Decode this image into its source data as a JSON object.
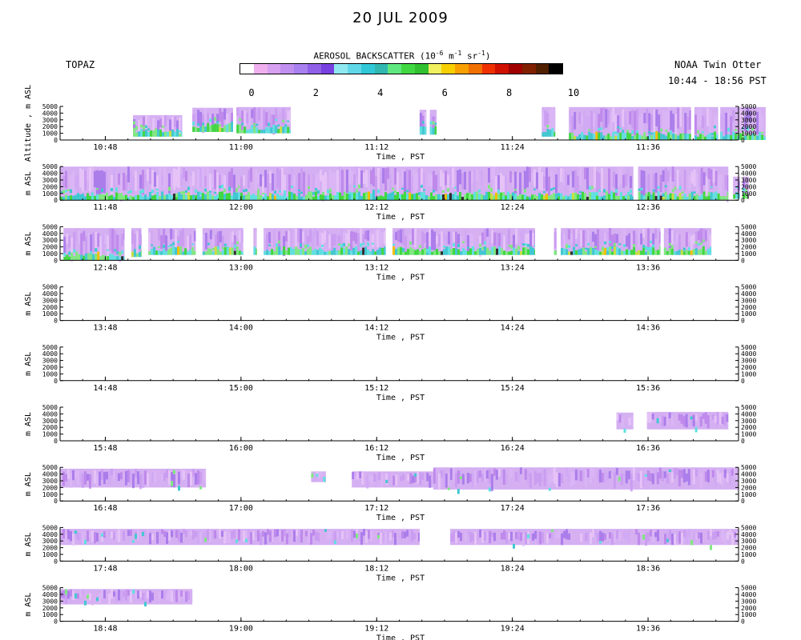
{
  "header": {
    "title": "20 JUL 2009",
    "instrument": "TOPAZ",
    "platform": "NOAA Twin Otter",
    "time_range": "10:44 - 18:56 PST"
  },
  "colorbar": {
    "label_pre": "AEROSOL BACKSCATTER (10",
    "label_exp1": "-6",
    "label_mid": " m",
    "label_exp2": "-1",
    "label_mid2": " sr",
    "label_exp3": "-1",
    "label_post": ")",
    "ticks": [
      "0",
      "2",
      "4",
      "6",
      "8",
      "10"
    ],
    "colors": [
      "#ffffff",
      "#f0b0f0",
      "#d8a0f0",
      "#c090f0",
      "#a880f0",
      "#9060e8",
      "#7840e0",
      "#90e8f0",
      "#60d8e8",
      "#30c8d8",
      "#30b8b0",
      "#60e880",
      "#40d840",
      "#30c030",
      "#f0f060",
      "#f8d000",
      "#f8a000",
      "#f07000",
      "#f03000",
      "#d01000",
      "#a00000",
      "#802000",
      "#502000",
      "#000000"
    ]
  },
  "chart_data": {
    "type": "heatmap",
    "quantity": "AEROSOL BACKSCATTER",
    "scale_range": [
      0,
      10
    ],
    "ylabel": "Altitude , m ASL",
    "ylabel_short": "m ASL",
    "xlabel": "Time , PST",
    "y_ticks": [
      "0",
      "1000",
      "2000",
      "3000",
      "4000",
      "5000"
    ],
    "ylim": [
      0,
      5000
    ],
    "panels": [
      {
        "start": "10:44",
        "end": "11:44",
        "ticks": [
          "10:48",
          "11:00",
          "11:12",
          "11:24",
          "11:36"
        ],
        "segments": [
          [
            10.75,
            18.0,
            500,
            3700,
            "full"
          ],
          [
            19.5,
            25.5,
            1200,
            4800,
            "full"
          ],
          [
            26.0,
            34.0,
            1000,
            4900,
            "full"
          ],
          [
            53.0,
            54.0,
            800,
            4500,
            "full"
          ],
          [
            54.5,
            55.5,
            800,
            4500,
            "full"
          ],
          [
            71.0,
            73.0,
            500,
            4900,
            "full"
          ],
          [
            75.0,
            93.0,
            0,
            4900,
            "full"
          ],
          [
            93.5,
            97.0,
            0,
            4900,
            "full"
          ],
          [
            97.3,
            104.0,
            0,
            4900,
            "full"
          ]
        ]
      },
      {
        "start": "11:44",
        "end": "12:44",
        "ticks": [
          "11:48",
          "12:00",
          "12:12",
          "12:24",
          "12:36"
        ],
        "segments": [
          [
            0,
            84.5,
            0,
            5000,
            "full"
          ],
          [
            85.2,
            98.5,
            0,
            5000,
            "full"
          ],
          [
            99.2,
            100.2,
            200,
            3500,
            "full"
          ],
          [
            100.6,
            101.5,
            200,
            3500,
            "full"
          ]
        ]
      },
      {
        "start": "12:44",
        "end": "13:44",
        "ticks": [
          "12:48",
          "13:00",
          "13:12",
          "13:24",
          "13:36"
        ],
        "segments": [
          [
            0.5,
            9.5,
            0,
            4800,
            "full"
          ],
          [
            10.5,
            12.0,
            500,
            4800,
            "full"
          ],
          [
            13.0,
            20.0,
            800,
            4800,
            "full"
          ],
          [
            21.0,
            27.0,
            800,
            4800,
            "full"
          ],
          [
            28.5,
            29.0,
            800,
            4800,
            "full"
          ],
          [
            30.0,
            48.0,
            800,
            4800,
            "full"
          ],
          [
            49.0,
            70.0,
            800,
            4800,
            "full"
          ],
          [
            72.8,
            73.2,
            800,
            4800,
            "full"
          ],
          [
            73.8,
            88.5,
            800,
            4800,
            "full"
          ],
          [
            89.0,
            96.0,
            800,
            4800,
            "full"
          ]
        ]
      },
      {
        "start": "13:44",
        "end": "14:44",
        "ticks": [
          "13:48",
          "14:00",
          "14:12",
          "14:24",
          "14:36"
        ],
        "segments": []
      },
      {
        "start": "14:44",
        "end": "15:44",
        "ticks": [
          "14:48",
          "15:00",
          "15:12",
          "15:24",
          "15:36"
        ],
        "segments": []
      },
      {
        "start": "15:44",
        "end": "16:44",
        "ticks": [
          "15:48",
          "16:00",
          "16:12",
          "16:24",
          "16:36"
        ],
        "segments": [
          [
            82.0,
            84.5,
            1700,
            4200,
            "mid"
          ],
          [
            86.5,
            98.5,
            1700,
            4300,
            "mid"
          ]
        ]
      },
      {
        "start": "16:44",
        "end": "17:44",
        "ticks": [
          "16:48",
          "17:00",
          "17:12",
          "17:24",
          "17:36"
        ],
        "segments": [
          [
            0,
            21.5,
            2000,
            4800,
            "mid"
          ],
          [
            37.0,
            39.2,
            2800,
            4400,
            "mid"
          ],
          [
            43.0,
            55.0,
            2000,
            4400,
            "mid"
          ],
          [
            55.0,
            100,
            1700,
            5000,
            "mid"
          ]
        ]
      },
      {
        "start": "17:44",
        "end": "18:44",
        "ticks": [
          "17:48",
          "18:00",
          "18:12",
          "18:24",
          "18:36"
        ],
        "segments": [
          [
            0,
            53.0,
            2400,
            4800,
            "mid"
          ],
          [
            57.5,
            100,
            2400,
            4800,
            "mid"
          ]
        ]
      },
      {
        "start": "18:44",
        "end": "19:44",
        "ticks": [
          "18:48",
          "19:00",
          "19:12",
          "19:24",
          "19:36"
        ],
        "segments": [
          [
            0,
            19.5,
            2500,
            4800,
            "mid"
          ]
        ]
      }
    ]
  }
}
